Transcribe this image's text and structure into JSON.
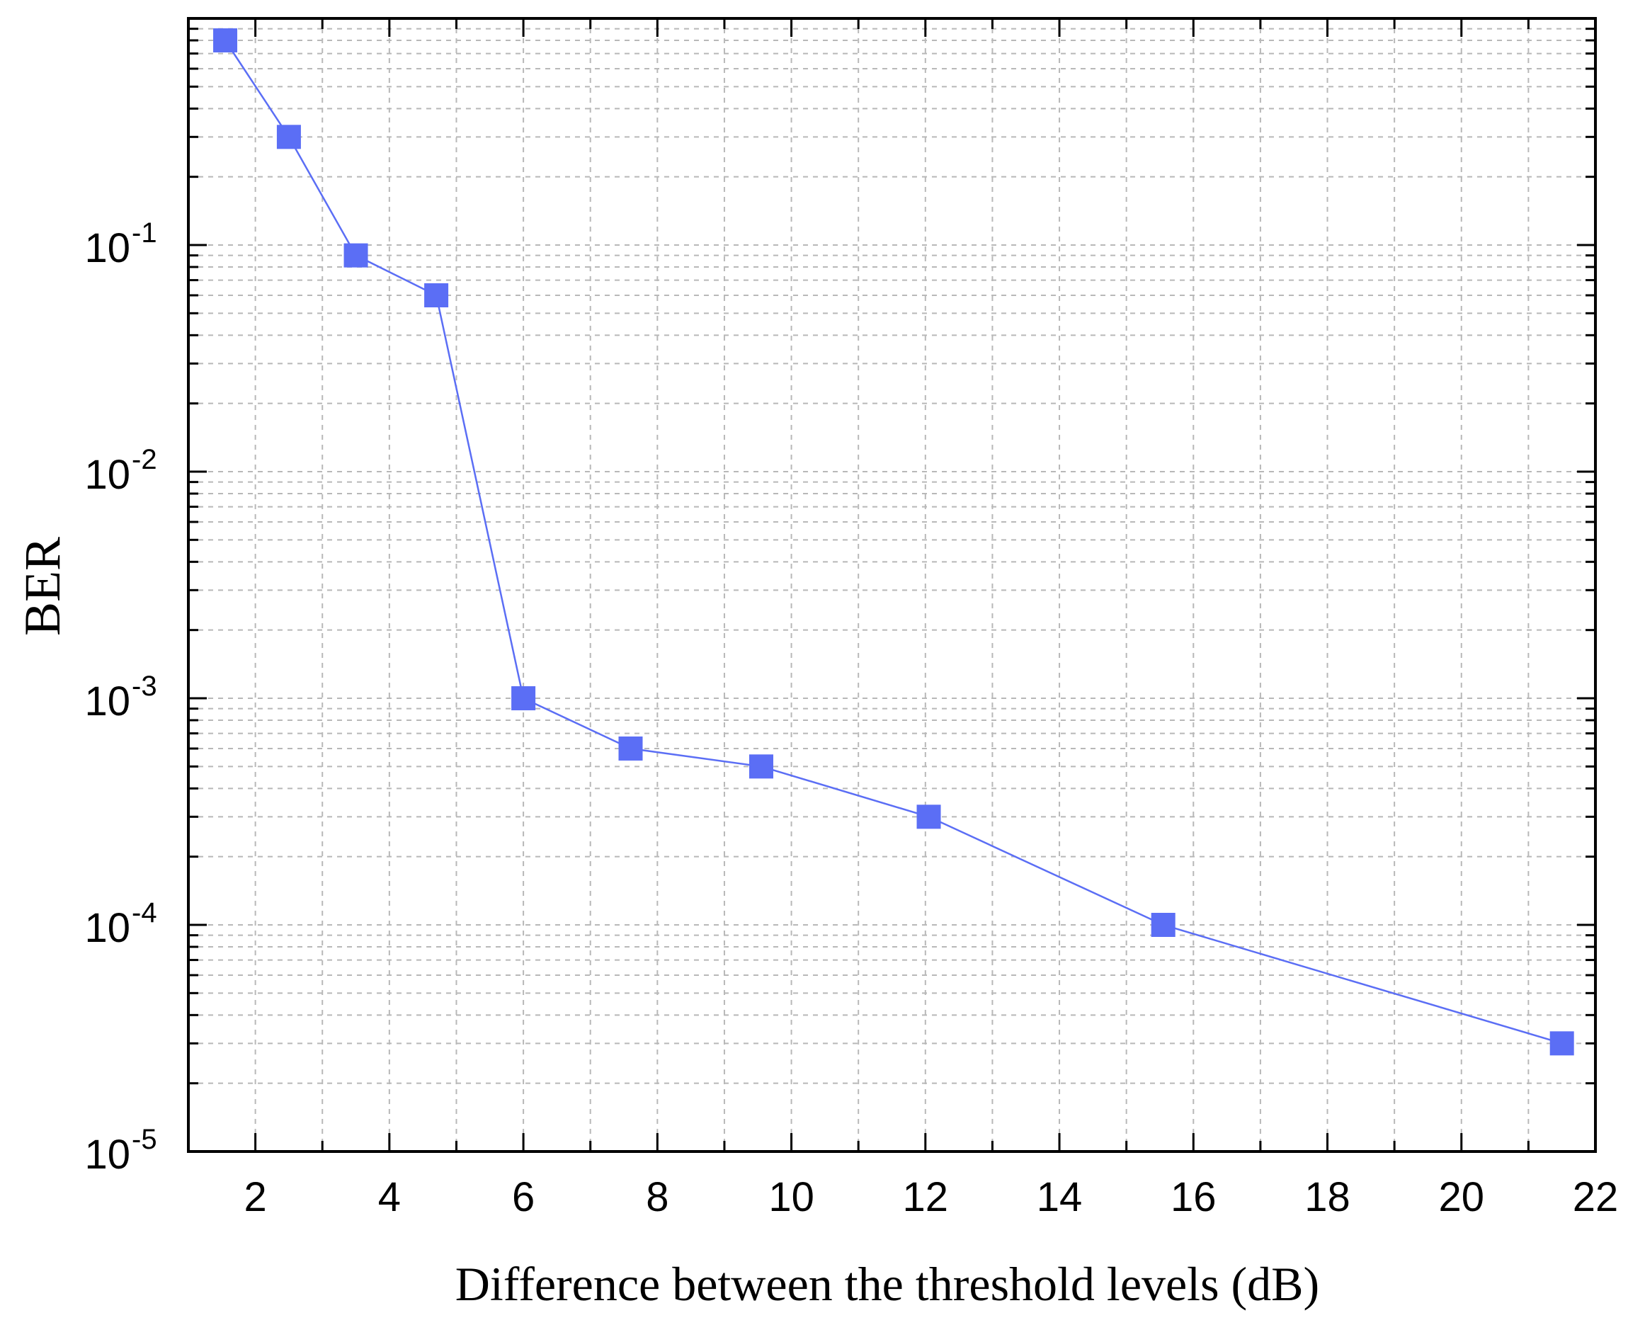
{
  "chart_data": {
    "type": "line",
    "title": "",
    "xlabel": "Difference between the threshold levels (dB)",
    "ylabel": "BER",
    "xlim": [
      1,
      22
    ],
    "ylim": [
      1e-05,
      1
    ],
    "yscale": "log",
    "grid": true,
    "x_ticks": [
      2,
      4,
      6,
      8,
      10,
      12,
      14,
      16,
      18,
      20,
      22
    ],
    "y_ticks": [
      {
        "value": 0.1,
        "base": "10",
        "exp": "-1"
      },
      {
        "value": 0.01,
        "base": "10",
        "exp": "-2"
      },
      {
        "value": 0.001,
        "base": "10",
        "exp": "-3"
      },
      {
        "value": 0.0001,
        "base": "10",
        "exp": "-4"
      },
      {
        "value": 1e-05,
        "base": "10",
        "exp": "-5"
      }
    ],
    "series": [
      {
        "name": "BER",
        "color": "#5b6ef5",
        "marker": "square",
        "x": [
          1.55,
          2.5,
          3.5,
          4.7,
          6.0,
          7.6,
          9.55,
          12.05,
          15.55,
          21.5
        ],
        "values": [
          0.8,
          0.3,
          0.09,
          0.06,
          0.001,
          0.0006,
          0.0005,
          0.0003,
          0.0001,
          3e-05
        ]
      }
    ]
  }
}
